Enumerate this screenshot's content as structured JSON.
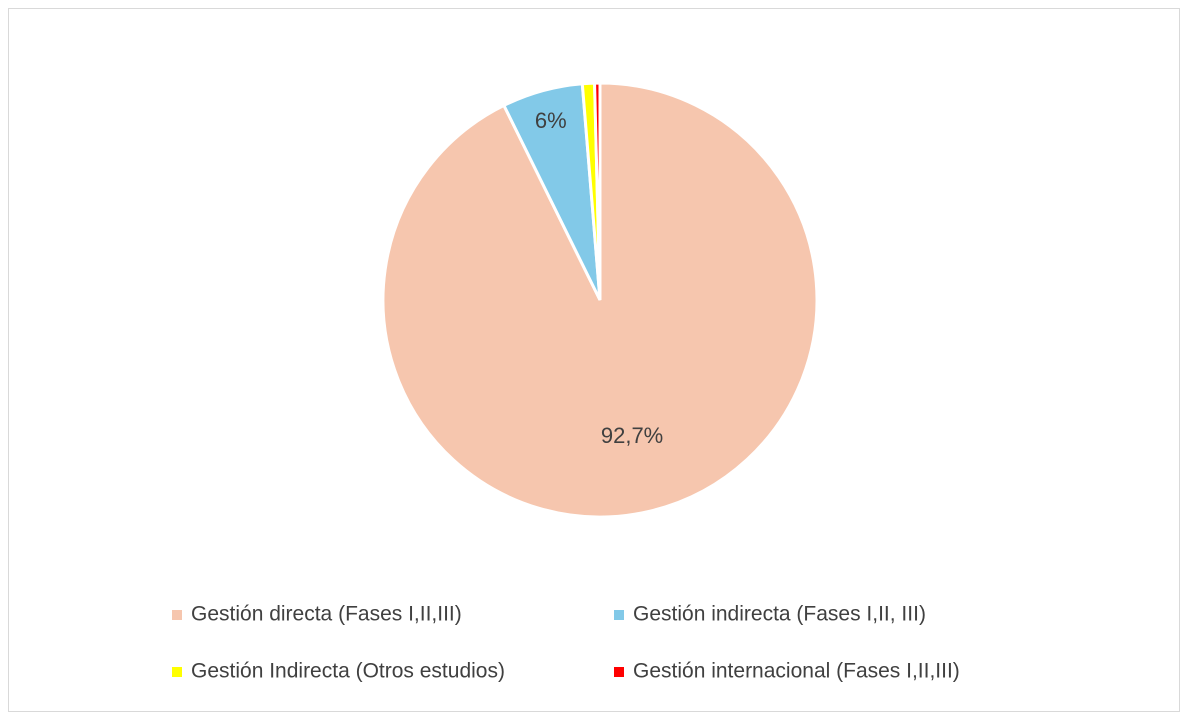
{
  "chart_data": {
    "type": "pie",
    "categories": [
      "Gestión directa (Fases I,II,III)",
      "Gestión indirecta (Fases I,II, III)",
      "Gestión Indirecta (Otros estudios)",
      "Gestión internacional (Fases I,II,III)"
    ],
    "values": [
      92.7,
      6,
      0.9,
      0.4
    ],
    "value_labels": [
      "92,7%",
      "6%",
      null,
      null
    ],
    "colors": [
      "#f6c6ae",
      "#82c9e8",
      "#ffff00",
      "#ff0000"
    ],
    "legend": "bottom"
  }
}
